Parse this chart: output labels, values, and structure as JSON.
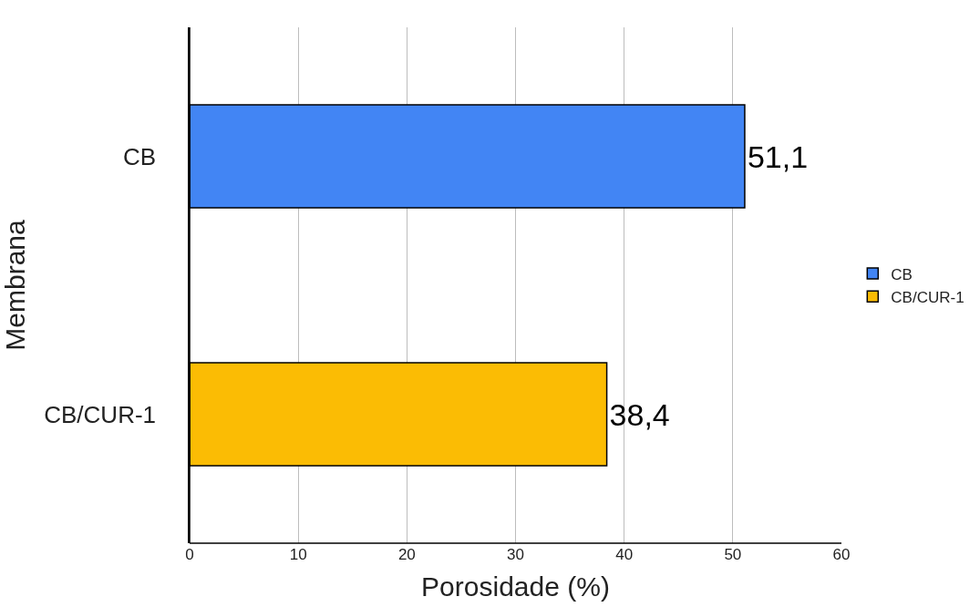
{
  "chart_data": {
    "type": "bar",
    "orientation": "horizontal",
    "xlabel": "Porosidade (%)",
    "ylabel": "Membrana",
    "categories": [
      "CB",
      "CB/CUR-1"
    ],
    "series": [
      {
        "name": "CB",
        "color": "#4285f4",
        "values": [
          51.1,
          null
        ],
        "value_labels": [
          "51,1",
          null
        ]
      },
      {
        "name": "CB/CUR-1",
        "color": "#fbbc04",
        "values": [
          null,
          38.4
        ],
        "value_labels": [
          null,
          "38,4"
        ]
      }
    ],
    "xlim": [
      0,
      60
    ],
    "xticks": [
      0,
      10,
      20,
      30,
      40,
      50,
      60
    ],
    "grid": "x",
    "legend": "right"
  }
}
